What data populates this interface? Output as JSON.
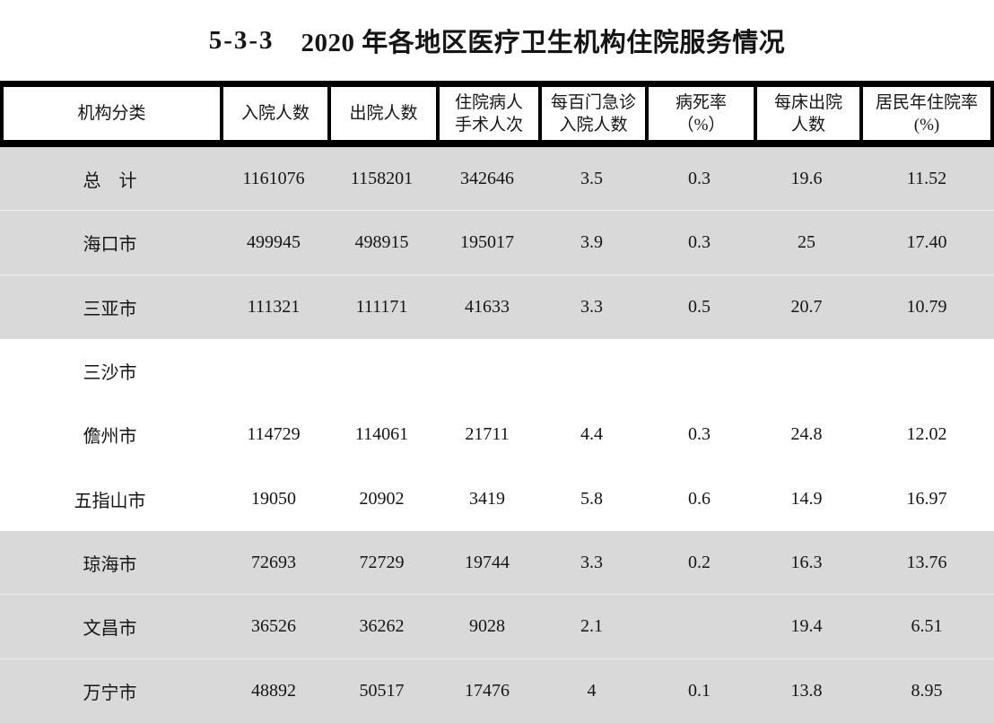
{
  "title": {
    "index": "5-3-3",
    "text": "2020 年各地区医疗卫生机构住院服务情况"
  },
  "table": {
    "columns": [
      {
        "name": "institution-class",
        "lines": [
          "机构分类",
          ""
        ]
      },
      {
        "name": "admissions",
        "lines": [
          "入院人数",
          ""
        ]
      },
      {
        "name": "discharges",
        "lines": [
          "出院人数",
          ""
        ]
      },
      {
        "name": "inpatient-surgeries",
        "lines": [
          "住院病人",
          "手术人次"
        ]
      },
      {
        "name": "admissions-per-100-visits",
        "lines": [
          "每百门急诊",
          "入院人数"
        ]
      },
      {
        "name": "mortality-rate",
        "lines": [
          "病死率",
          "（%）"
        ]
      },
      {
        "name": "discharges-per-bed",
        "lines": [
          "每床出院",
          "人数"
        ]
      },
      {
        "name": "residents-hospitalization-rate",
        "lines": [
          "居民年住院率",
          "(%)"
        ]
      }
    ],
    "rows": [
      {
        "region": "总　计",
        "values": [
          "1161076",
          "1158201",
          "342646",
          "3.5",
          "0.3",
          "19.6",
          "11.52"
        ]
      },
      {
        "region": "海口市",
        "values": [
          "499945",
          "498915",
          "195017",
          "3.9",
          "0.3",
          "25",
          "17.40"
        ]
      },
      {
        "region": "三亚市",
        "values": [
          "111321",
          "111171",
          "41633",
          "3.3",
          "0.5",
          "20.7",
          "10.79"
        ]
      },
      {
        "region": "三沙市",
        "values": [
          "",
          "",
          "",
          "",
          "",
          "",
          ""
        ]
      },
      {
        "region": "儋州市",
        "values": [
          "114729",
          "114061",
          "21711",
          "4.4",
          "0.3",
          "24.8",
          "12.02"
        ]
      },
      {
        "region": "五指山市",
        "values": [
          "19050",
          "20902",
          "3419",
          "5.8",
          "0.6",
          "14.9",
          "16.97"
        ]
      },
      {
        "region": "琼海市",
        "values": [
          "72693",
          "72729",
          "19744",
          "3.3",
          "0.2",
          "16.3",
          "13.76"
        ]
      },
      {
        "region": "文昌市",
        "values": [
          "36526",
          "36262",
          "9028",
          "2.1",
          "",
          "19.4",
          "6.51"
        ]
      },
      {
        "region": "万宁市",
        "values": [
          "48892",
          "50517",
          "17476",
          "4",
          "0.1",
          "13.8",
          "8.95"
        ]
      }
    ]
  },
  "colors": {
    "band": "#d9d9d9",
    "rule": "#000000",
    "page-bg": "#ffffff",
    "ink": "#151515"
  }
}
